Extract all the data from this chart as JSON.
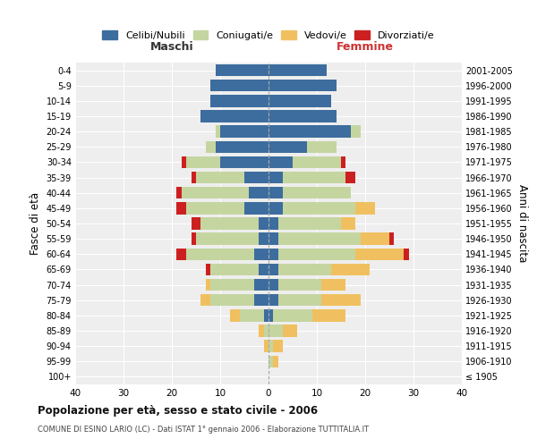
{
  "age_groups": [
    "100+",
    "95-99",
    "90-94",
    "85-89",
    "80-84",
    "75-79",
    "70-74",
    "65-69",
    "60-64",
    "55-59",
    "50-54",
    "45-49",
    "40-44",
    "35-39",
    "30-34",
    "25-29",
    "20-24",
    "15-19",
    "10-14",
    "5-9",
    "0-4"
  ],
  "birth_years": [
    "≤ 1905",
    "1906-1910",
    "1911-1915",
    "1916-1920",
    "1921-1925",
    "1926-1930",
    "1931-1935",
    "1936-1940",
    "1941-1945",
    "1946-1950",
    "1951-1955",
    "1956-1960",
    "1961-1965",
    "1966-1970",
    "1971-1975",
    "1976-1980",
    "1981-1985",
    "1986-1990",
    "1991-1995",
    "1996-2000",
    "2001-2005"
  ],
  "colors": {
    "celibi": "#3d6d9e",
    "coniugati": "#c5d5a0",
    "vedovi": "#f0c060",
    "divorziati": "#cc2020"
  },
  "maschi": {
    "celibi": [
      0,
      0,
      0,
      0,
      1,
      3,
      3,
      2,
      3,
      2,
      2,
      5,
      4,
      5,
      10,
      11,
      10,
      14,
      12,
      12,
      11
    ],
    "coniugati": [
      0,
      0,
      0,
      1,
      5,
      9,
      9,
      10,
      14,
      13,
      12,
      12,
      14,
      10,
      7,
      2,
      1,
      0,
      0,
      0,
      0
    ],
    "vedovi": [
      0,
      0,
      1,
      1,
      2,
      2,
      1,
      0,
      0,
      0,
      0,
      0,
      0,
      0,
      0,
      0,
      0,
      0,
      0,
      0,
      0
    ],
    "divorziati": [
      0,
      0,
      0,
      0,
      0,
      0,
      0,
      1,
      2,
      1,
      2,
      2,
      1,
      1,
      1,
      0,
      0,
      0,
      0,
      0,
      0
    ]
  },
  "femmine": {
    "celibi": [
      0,
      0,
      0,
      0,
      1,
      2,
      2,
      2,
      2,
      2,
      2,
      3,
      3,
      3,
      5,
      8,
      17,
      14,
      13,
      14,
      12
    ],
    "coniugati": [
      0,
      1,
      1,
      3,
      8,
      9,
      9,
      11,
      16,
      17,
      13,
      15,
      14,
      13,
      10,
      6,
      2,
      0,
      0,
      0,
      0
    ],
    "vedovi": [
      0,
      1,
      2,
      3,
      7,
      8,
      5,
      8,
      10,
      6,
      3,
      4,
      0,
      0,
      0,
      0,
      0,
      0,
      0,
      0,
      0
    ],
    "divorziati": [
      0,
      0,
      0,
      0,
      0,
      0,
      0,
      0,
      1,
      1,
      0,
      0,
      0,
      2,
      1,
      0,
      0,
      0,
      0,
      0,
      0
    ]
  },
  "title": "Popolazione per età, sesso e stato civile - 2006",
  "subtitle": "COMUNE DI ESINO LARIO (LC) - Dati ISTAT 1° gennaio 2006 - Elaborazione TUTTITALIA.IT",
  "xlabel_left": "Maschi",
  "xlabel_right": "Femmine",
  "ylabel_left": "Fasce di età",
  "ylabel_right": "Anni di nascita",
  "legend_labels": [
    "Celibi/Nubili",
    "Coniugati/e",
    "Vedovi/e",
    "Divorziati/e"
  ],
  "xlim": 40,
  "background_color": "#ffffff",
  "plot_bg": "#eeeeee",
  "grid_color": "#cccccc"
}
